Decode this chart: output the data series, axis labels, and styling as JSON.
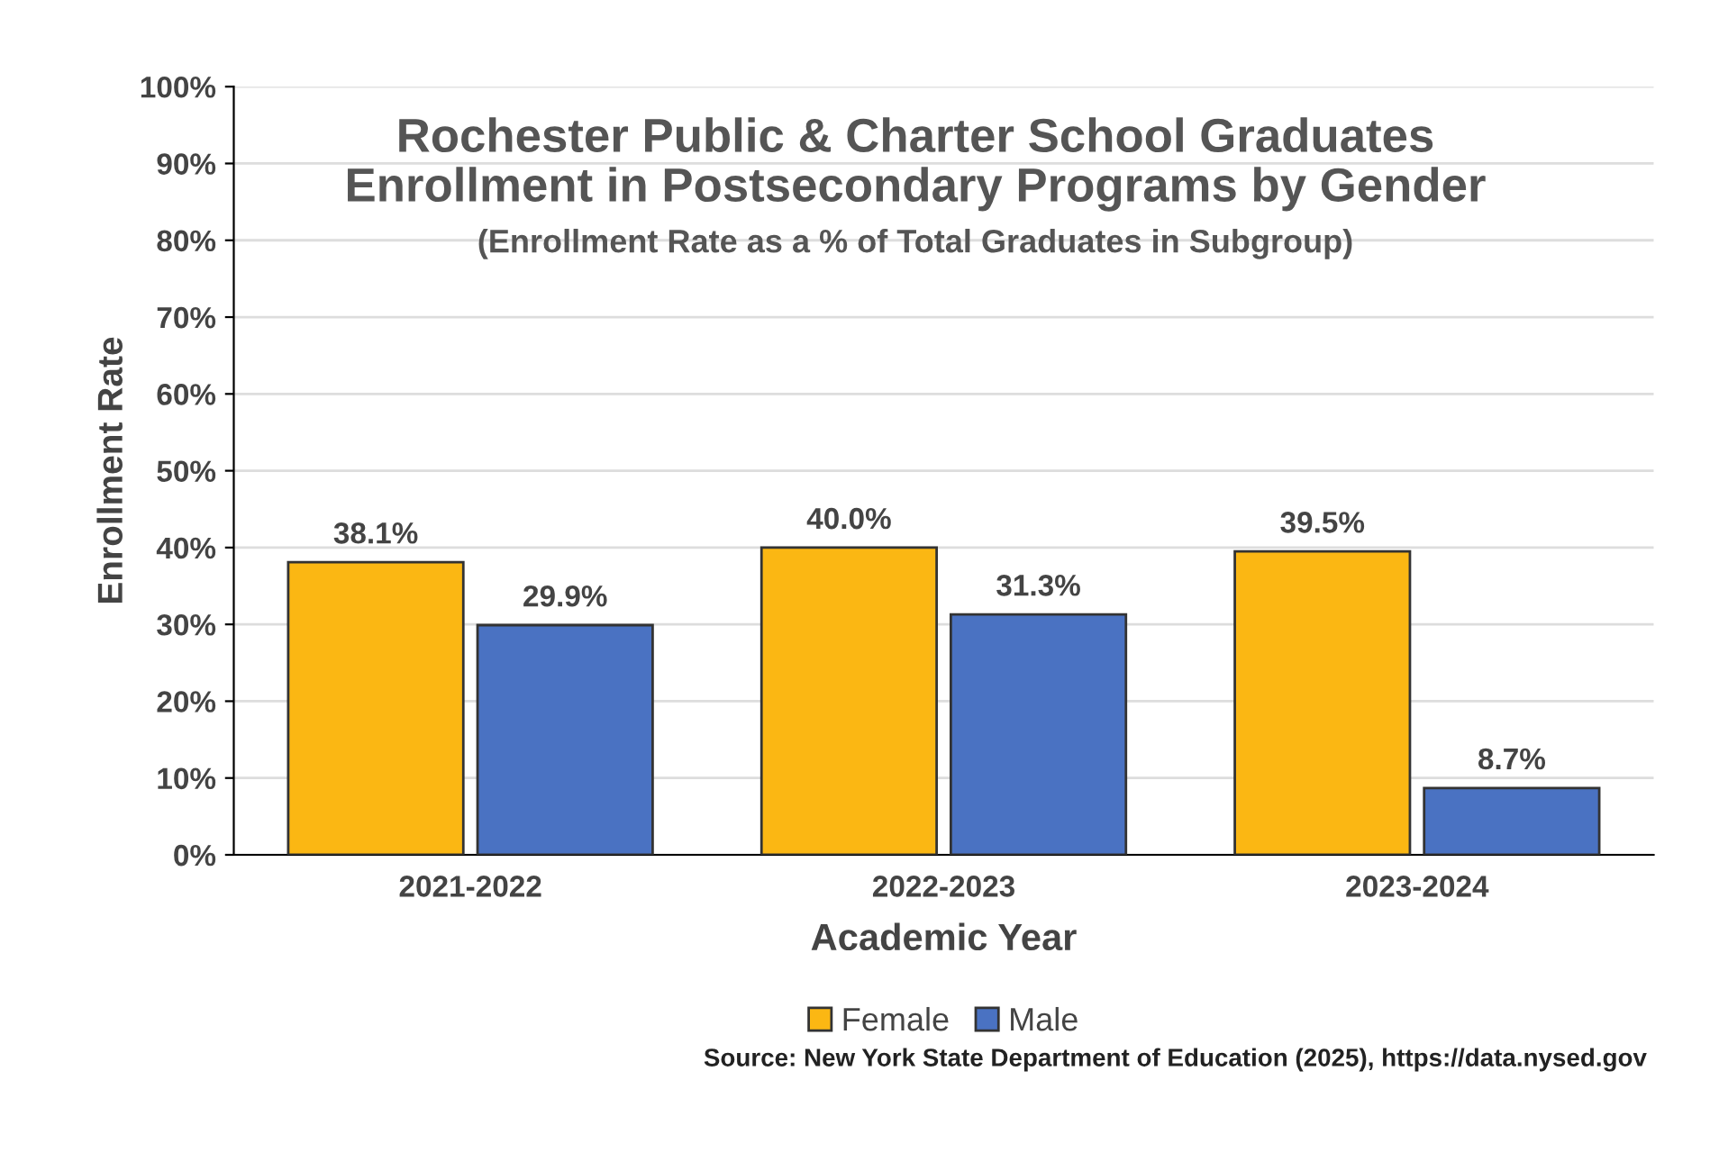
{
  "chart_data": {
    "type": "bar",
    "title": "Rochester Public & Charter School Graduates\nEnrollment in Postsecondary Programs by Gender",
    "subtitle": "(Enrollment Rate as a % of Total Graduates in Subgroup)",
    "xlabel": "Academic Year",
    "ylabel": "Enrollment Rate",
    "categories": [
      "2021-2022",
      "2022-2023",
      "2023-2024"
    ],
    "series": [
      {
        "name": "Female",
        "color": "#fbb713",
        "values": [
          38.1,
          40.0,
          39.5
        ],
        "value_labels": [
          "38.1%",
          "40.0%",
          "39.5%"
        ]
      },
      {
        "name": "Male",
        "color": "#4a72c2",
        "values": [
          29.9,
          31.3,
          8.7
        ],
        "value_labels": [
          "29.9%",
          "31.3%",
          "8.7%"
        ]
      }
    ],
    "ylim": [
      0,
      100
    ],
    "yticks": [
      {
        "value": 0,
        "label": "0%"
      },
      {
        "value": 10,
        "label": "10%"
      },
      {
        "value": 20,
        "label": "20%"
      },
      {
        "value": 30,
        "label": "30%"
      },
      {
        "value": 40,
        "label": "40%"
      },
      {
        "value": 50,
        "label": "50%"
      },
      {
        "value": 60,
        "label": "60%"
      },
      {
        "value": 70,
        "label": "70%"
      },
      {
        "value": 80,
        "label": "80%"
      },
      {
        "value": 90,
        "label": "90%"
      },
      {
        "value": 100,
        "label": "100%"
      }
    ],
    "grid": "y",
    "legend": "bottom",
    "annotations": [
      "Source: New York State Department of Education (2025), https://data.nysed.gov"
    ]
  }
}
